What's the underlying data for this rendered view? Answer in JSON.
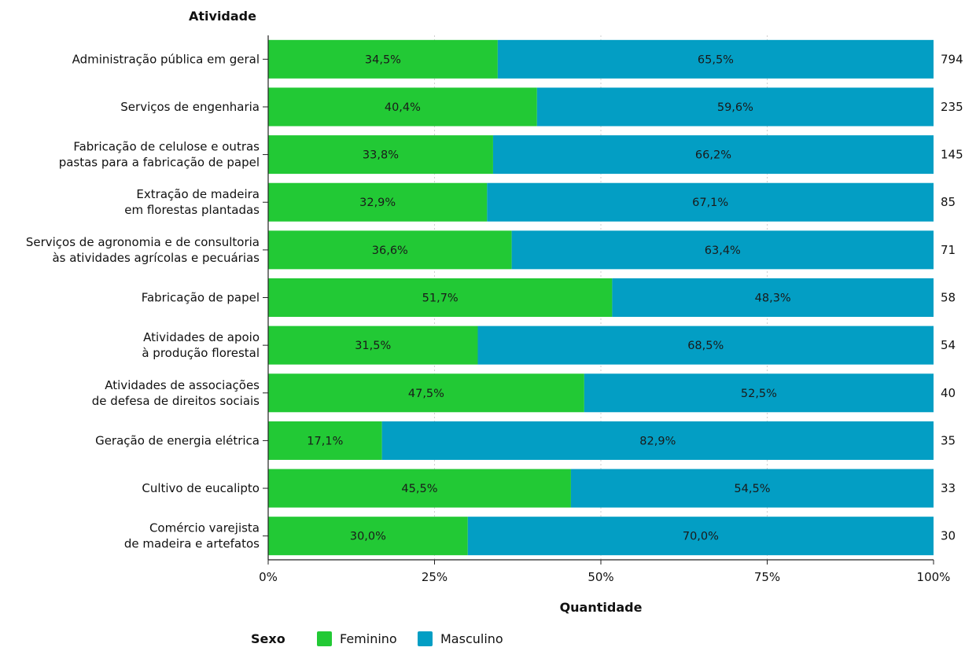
{
  "chart_data": {
    "type": "bar",
    "orientation": "horizontal",
    "stacked": "percent",
    "title": "",
    "ylabel": "Atividade",
    "xlabel": "Quantidade",
    "xlim": [
      0,
      100
    ],
    "x_ticks": [
      "0%",
      "25%",
      "50%",
      "75%",
      "100%"
    ],
    "grid": "vertical dotted",
    "legend_position": "bottom",
    "legend_title": "Sexo",
    "categories": [
      [
        "Administração pública em geral"
      ],
      [
        "Serviços de engenharia"
      ],
      [
        "Fabricação de celulose e outras",
        "pastas para a fabricação de papel"
      ],
      [
        "Extração de madeira",
        "em florestas plantadas"
      ],
      [
        "Serviços de agronomia e de consultoria",
        "às atividades agrícolas e pecuárias"
      ],
      [
        "Fabricação de papel"
      ],
      [
        "Atividades de apoio",
        "à produção florestal"
      ],
      [
        "Atividades de associações",
        "de defesa de direitos sociais"
      ],
      [
        "Geração de energia elétrica"
      ],
      [
        "Cultivo de eucalipto"
      ],
      [
        "Comércio varejista",
        "de madeira e artefatos"
      ]
    ],
    "totals": [
      "794",
      "235",
      "145",
      "85",
      "71",
      "58",
      "54",
      "40",
      "35",
      "33",
      "30"
    ],
    "series": [
      {
        "name": "Feminino",
        "color": "#22c935",
        "values": [
          34.5,
          40.4,
          33.8,
          32.9,
          36.6,
          51.7,
          31.5,
          47.5,
          17.1,
          45.5,
          30.0
        ],
        "labels": [
          "34,5%",
          "40,4%",
          "33,8%",
          "32,9%",
          "36,6%",
          "51,7%",
          "31,5%",
          "47,5%",
          "17,1%",
          "45,5%",
          "30,0%"
        ]
      },
      {
        "name": "Masculino",
        "color": "#039ec4",
        "values": [
          65.5,
          59.6,
          66.2,
          67.1,
          63.4,
          48.3,
          68.5,
          52.5,
          82.9,
          54.5,
          70.0
        ],
        "labels": [
          "65,5%",
          "59,6%",
          "66,2%",
          "67,1%",
          "63,4%",
          "48,3%",
          "68,5%",
          "52,5%",
          "82,9%",
          "54,5%",
          "70,0%"
        ]
      }
    ]
  }
}
